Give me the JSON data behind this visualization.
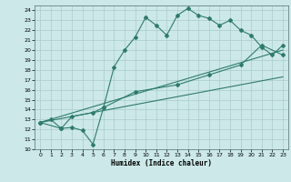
{
  "xlabel": "Humidex (Indice chaleur)",
  "background_color": "#cce8e8",
  "grid_color": "#aacccc",
  "line_color": "#2e7b6e",
  "xlim": [
    -0.5,
    23.5
  ],
  "ylim": [
    10,
    24.5
  ],
  "xticks": [
    0,
    1,
    2,
    3,
    4,
    5,
    6,
    7,
    8,
    9,
    10,
    11,
    12,
    13,
    14,
    15,
    16,
    17,
    18,
    19,
    20,
    21,
    22,
    23
  ],
  "yticks": [
    10,
    11,
    12,
    13,
    14,
    15,
    16,
    17,
    18,
    19,
    20,
    21,
    22,
    23,
    24
  ],
  "line1_x": [
    0,
    1,
    2,
    3,
    4,
    5,
    6,
    7,
    8,
    9,
    10,
    11,
    12,
    13,
    14,
    15,
    16,
    17,
    18,
    19,
    20,
    21,
    22,
    23
  ],
  "line1_y": [
    12.7,
    13.0,
    12.1,
    12.2,
    11.9,
    10.5,
    14.2,
    18.3,
    20.0,
    21.3,
    23.3,
    22.5,
    21.5,
    23.5,
    24.2,
    23.5,
    23.2,
    22.5,
    23.0,
    22.0,
    21.5,
    20.3,
    19.5,
    20.5
  ],
  "line2_x": [
    0,
    1,
    2,
    3,
    4,
    5,
    6,
    7,
    8,
    9,
    10,
    11,
    12,
    13,
    14,
    15,
    16,
    17,
    18,
    19,
    20,
    21,
    22,
    23
  ],
  "line2_y": [
    12.7,
    12.9,
    13.1,
    13.3,
    13.5,
    13.7,
    13.9,
    14.1,
    14.3,
    14.5,
    14.7,
    14.9,
    15.1,
    15.3,
    15.5,
    15.7,
    15.9,
    16.1,
    16.3,
    16.5,
    16.7,
    16.9,
    17.1,
    17.3
  ],
  "line3_x": [
    0,
    23
  ],
  "line3_y": [
    12.7,
    20.0
  ],
  "line4_x": [
    0,
    2,
    3,
    5,
    6,
    9,
    13,
    16,
    19,
    21,
    23
  ],
  "line4_y": [
    12.7,
    12.1,
    13.3,
    13.7,
    14.2,
    15.8,
    16.5,
    17.5,
    18.5,
    20.5,
    19.5
  ]
}
